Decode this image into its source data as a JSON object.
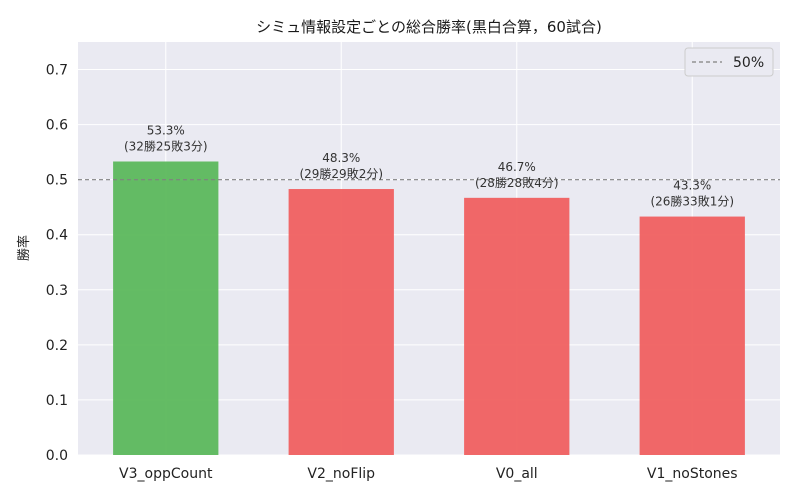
{
  "chart_data": {
    "type": "bar",
    "title": "シミュ情報設定ごとの総合勝率(黒白合算，60試合)",
    "xlabel": "",
    "ylabel": "勝率",
    "ylim": [
      0,
      0.75
    ],
    "yticks": [
      "0.0",
      "0.1",
      "0.2",
      "0.3",
      "0.4",
      "0.5",
      "0.6",
      "0.7"
    ],
    "categories": [
      "V3_oppCount",
      "V2_noFlip",
      "V0_all",
      "V1_noStones"
    ],
    "values": [
      0.533,
      0.483,
      0.467,
      0.433
    ],
    "value_labels": [
      "53.3%",
      "48.3%",
      "46.7%",
      "43.3%"
    ],
    "record_labels": [
      "(32勝25敗3分)",
      "(29勝29敗2分)",
      "(28勝28敗4分)",
      "(26勝33敗1分)"
    ],
    "bar_colors": [
      "#5cb85c",
      "#f06060",
      "#f06060",
      "#f06060"
    ],
    "reference_line": {
      "value": 0.5,
      "label": "50%",
      "color": "#808080"
    },
    "grid": true,
    "legend_position": "top-right",
    "background": "#eaeaf2"
  }
}
